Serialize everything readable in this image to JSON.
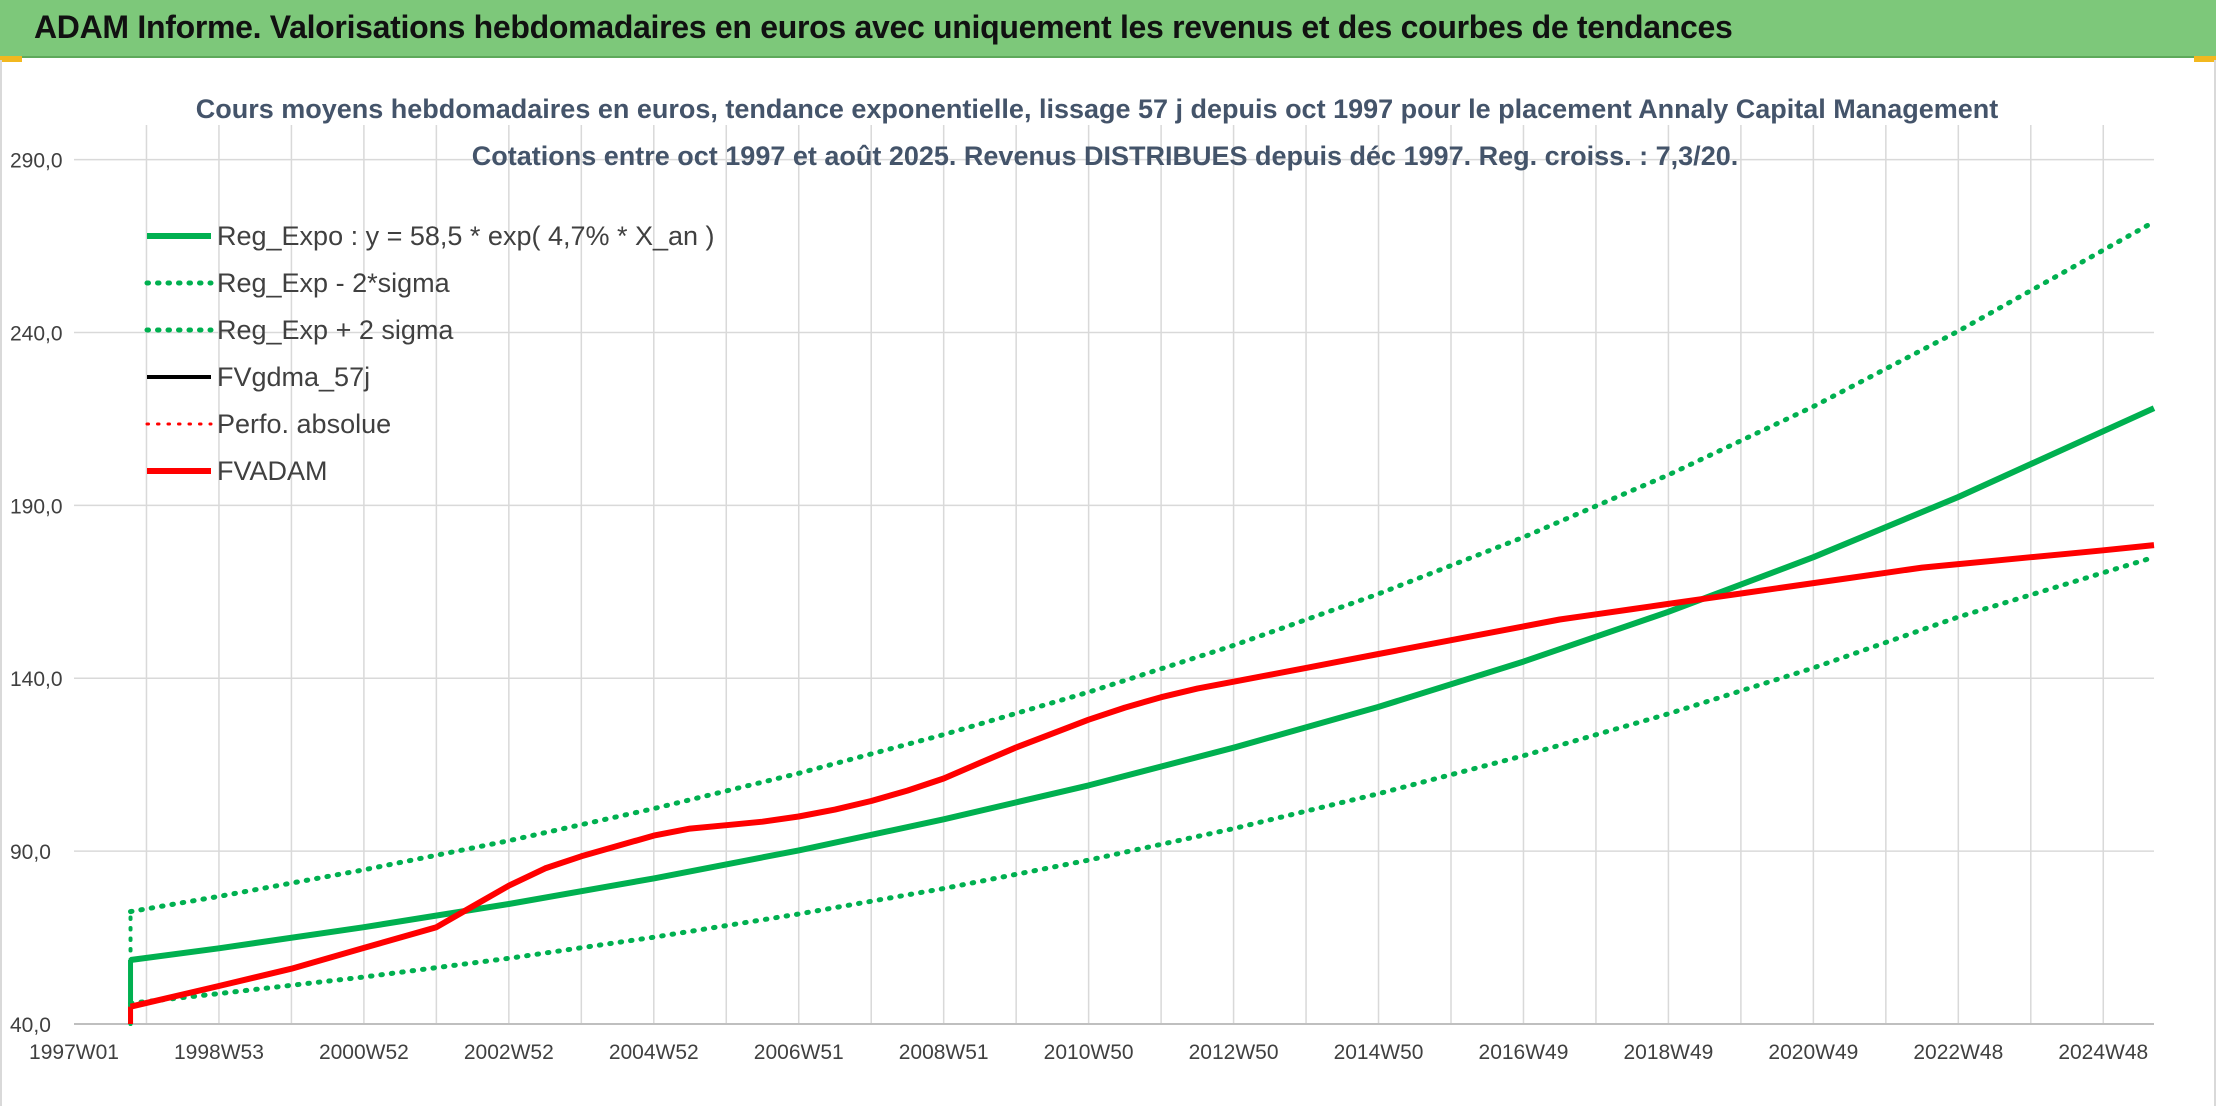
{
  "banner": {
    "title": "ADAM Informe. Valorisations hebdomadaires en euros avec uniquement les revenus et des courbes de tendances"
  },
  "colors": {
    "banner_bg": "#7dc87a",
    "reg_green": "#00b050",
    "adam_red": "#ff0000",
    "black": "#000000",
    "grid": "#d9d9d9",
    "title_text": "#44546a"
  },
  "chart_data": {
    "type": "line",
    "title": "Cours moyens hebdomadaires en euros, tendance exponentielle, lissage 57 j depuis oct 1997 pour le placement Annaly Capital Management",
    "subtitle": "Cotations entre oct 1997 et août 2025. Revenus DISTRIBUES depuis déc 1997. Reg. croiss. : 7,3/20.",
    "xlabel": "",
    "ylabel": "",
    "x_tick_labels": [
      "1997W01",
      "1998W53",
      "2000W52",
      "2002W52",
      "2004W52",
      "2006W51",
      "2008W51",
      "2010W50",
      "2012W50",
      "2014W50",
      "2016W49",
      "2018W49",
      "2020W49",
      "2022W48",
      "2024W48"
    ],
    "x_tick_years": [
      1997.0,
      1999.0,
      2001.0,
      2003.0,
      2005.0,
      2007.0,
      2009.0,
      2011.0,
      2013.0,
      2015.0,
      2017.0,
      2019.0,
      2021.0,
      2023.0,
      2025.0
    ],
    "xlim": [
      1997.0,
      2025.7
    ],
    "y_tick_labels": [
      "40,0",
      "90,0",
      "140,0",
      "190,0",
      "240,0",
      "290,0"
    ],
    "y_ticks": [
      40,
      90,
      140,
      190,
      240,
      290
    ],
    "ylim": [
      40,
      300
    ],
    "grid": true,
    "legend_position": "top-left",
    "series": [
      {
        "name": "Reg_Expo : y = 58,5 * exp( 4,7% *  X_an )",
        "color": "#00b050",
        "style": "solid",
        "width": 6,
        "x": [
          1997.78,
          1999.0,
          2001.0,
          2003.0,
          2005.0,
          2007.0,
          2009.0,
          2011.0,
          2013.0,
          2015.0,
          2017.0,
          2019.0,
          2021.0,
          2023.0,
          2025.7
        ],
        "y": [
          58.5,
          61.9,
          68.0,
          74.7,
          82.1,
          90.2,
          99.2,
          109.0,
          119.9,
          131.7,
          144.8,
          159.2,
          175.0,
          192.4,
          218.1
        ]
      },
      {
        "name": "Reg_Exp - 2*sigma",
        "color": "#00b050",
        "style": "dotted",
        "width": 5,
        "x": [
          1997.78,
          1999.0,
          2001.0,
          2003.0,
          2005.0,
          2007.0,
          2009.0,
          2011.0,
          2013.0,
          2015.0,
          2017.0,
          2019.0,
          2021.0,
          2023.0,
          2025.7
        ],
        "y": [
          46.0,
          48.8,
          53.6,
          59.0,
          65.1,
          71.8,
          79.2,
          87.4,
          96.5,
          106.6,
          117.6,
          129.7,
          143.0,
          157.7,
          175.0
        ]
      },
      {
        "name": "Reg_Exp + 2 sigma",
        "color": "#00b050",
        "style": "dotted",
        "width": 5,
        "x": [
          1997.78,
          1999.0,
          2001.0,
          2003.0,
          2005.0,
          2007.0,
          2009.0,
          2011.0,
          2013.0,
          2015.0,
          2017.0,
          2019.0,
          2021.0,
          2023.0,
          2025.7
        ],
        "y": [
          72.5,
          76.9,
          84.6,
          93.0,
          102.3,
          112.5,
          123.7,
          136.0,
          149.5,
          164.4,
          180.8,
          198.8,
          218.6,
          240.4,
          272.0
        ]
      },
      {
        "name": "FVgdma_57j",
        "color": "#000000",
        "style": "solid",
        "width": 4,
        "x": [],
        "y": []
      },
      {
        "name": "Perfo. absolue",
        "color": "#ff0000",
        "style": "dotted",
        "width": 3,
        "x": [],
        "y": []
      },
      {
        "name": "FVADAM",
        "color": "#ff0000",
        "style": "solid",
        "width": 6,
        "x": [
          1997.78,
          1999.0,
          2000.0,
          2001.0,
          2002.0,
          2002.5,
          2003.0,
          2003.5,
          2004.0,
          2004.5,
          2005.0,
          2005.5,
          2006.0,
          2006.5,
          2007.0,
          2007.5,
          2008.0,
          2008.5,
          2009.0,
          2009.5,
          2010.0,
          2010.5,
          2011.0,
          2011.5,
          2012.0,
          2012.5,
          2013.0,
          2013.5,
          2014.0,
          2014.5,
          2015.0,
          2015.5,
          2016.0,
          2016.5,
          2017.0,
          2017.5,
          2018.0,
          2018.5,
          2019.0,
          2019.5,
          2020.0,
          2020.5,
          2021.0,
          2021.5,
          2022.0,
          2022.5,
          2023.0,
          2023.5,
          2024.0,
          2024.5,
          2025.0,
          2025.7
        ],
        "y": [
          45.0,
          51.0,
          56.0,
          62.0,
          68.0,
          74.0,
          80.0,
          85.0,
          88.5,
          91.5,
          94.5,
          96.5,
          97.5,
          98.5,
          100.0,
          102.0,
          104.5,
          107.5,
          111.0,
          115.5,
          120.0,
          124.0,
          128.0,
          131.5,
          134.5,
          137.0,
          139.0,
          141.0,
          143.0,
          145.0,
          147.0,
          149.0,
          151.0,
          153.0,
          155.0,
          157.0,
          158.5,
          160.0,
          161.5,
          163.0,
          164.5,
          166.0,
          167.5,
          169.0,
          170.5,
          172.0,
          173.0,
          174.0,
          175.0,
          176.0,
          177.0,
          178.5
        ]
      }
    ]
  }
}
